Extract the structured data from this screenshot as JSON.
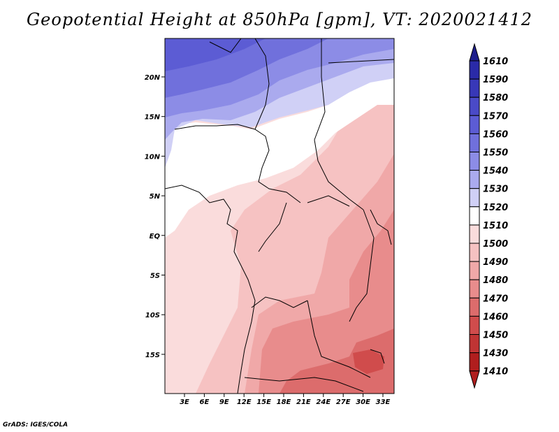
{
  "title": "Geopotential Height at 850hPa [gpm], VT: 2020021412",
  "credit": "GrADS: IGES/COLA",
  "chart_data": {
    "type": "heatmap",
    "variable": "Geopotential Height at 850hPa",
    "unit": "gpm",
    "valid_time": "2020021412",
    "lat_ticks": [
      "20N",
      "15N",
      "10N",
      "5N",
      "EQ",
      "5S",
      "10S",
      "15S"
    ],
    "lon_ticks": [
      "3E",
      "6E",
      "9E",
      "12E",
      "15E",
      "18E",
      "21E",
      "24E",
      "27E",
      "30E",
      "33E"
    ],
    "colorbar": {
      "levels": [
        "1610",
        "1590",
        "1580",
        "1570",
        "1560",
        "1550",
        "1540",
        "1530",
        "1520",
        "1510",
        "1500",
        "1490",
        "1480",
        "1470",
        "1460",
        "1450",
        "1430",
        "1410"
      ],
      "colors": [
        "#1e1e8c",
        "#2a2aa8",
        "#3838b8",
        "#4a4ac8",
        "#5c5cd4",
        "#7070dc",
        "#8c8ce6",
        "#aaaaee",
        "#d0d0f6",
        "#ffffff",
        "#fadcdc",
        "#f6c2c2",
        "#f0a8a8",
        "#e88c8c",
        "#dc6c6c",
        "#d04c4c",
        "#c03434",
        "#b01e1e"
      ]
    }
  }
}
